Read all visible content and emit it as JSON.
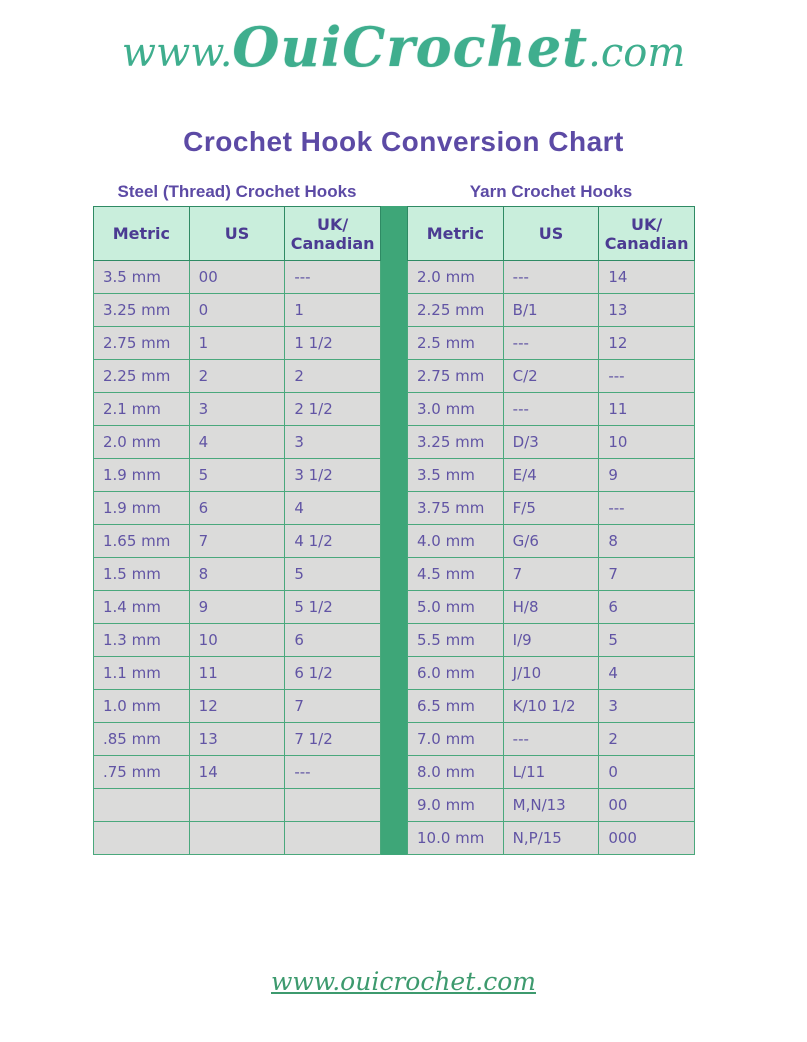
{
  "logo": {
    "prefix": "www.",
    "name": "OuiCrochet",
    "suffix": ".com"
  },
  "page_title": "Crochet Hook Conversion Chart",
  "tables": [
    {
      "title": "Steel (Thread) Crochet Hooks",
      "headers": [
        "Metric",
        "US",
        "UK/\nCanadian"
      ],
      "rows": [
        [
          "3.5 mm",
          "00",
          "---"
        ],
        [
          "3.25 mm",
          "0",
          "1"
        ],
        [
          "2.75 mm",
          "1",
          "1 1/2"
        ],
        [
          "2.25 mm",
          "2",
          "2"
        ],
        [
          "2.1 mm",
          "3",
          "2 1/2"
        ],
        [
          "2.0 mm",
          "4",
          "3"
        ],
        [
          "1.9 mm",
          "5",
          "3 1/2"
        ],
        [
          "1.9 mm",
          "6",
          "4"
        ],
        [
          "1.65 mm",
          "7",
          "4 1/2"
        ],
        [
          "1.5 mm",
          "8",
          "5"
        ],
        [
          "1.4 mm",
          "9",
          "5 1/2"
        ],
        [
          "1.3 mm",
          "10",
          "6"
        ],
        [
          "1.1 mm",
          "11",
          "6 1/2"
        ],
        [
          "1.0 mm",
          "12",
          "7"
        ],
        [
          ".85 mm",
          "13",
          "7 1/2"
        ],
        [
          ".75 mm",
          "14",
          "---"
        ],
        [
          "",
          "",
          ""
        ],
        [
          "",
          "",
          ""
        ]
      ]
    },
    {
      "title": "Yarn Crochet Hooks",
      "headers": [
        "Metric",
        "US",
        "UK/\nCanadian"
      ],
      "rows": [
        [
          "2.0 mm",
          "---",
          "14"
        ],
        [
          "2.25 mm",
          "B/1",
          "13"
        ],
        [
          "2.5 mm",
          "---",
          "12"
        ],
        [
          "2.75 mm",
          "C/2",
          "---"
        ],
        [
          "3.0 mm",
          "---",
          "11"
        ],
        [
          "3.25 mm",
          "D/3",
          "10"
        ],
        [
          "3.5 mm",
          "E/4",
          "9"
        ],
        [
          "3.75 mm",
          "F/5",
          "---"
        ],
        [
          "4.0 mm",
          "G/6",
          "8"
        ],
        [
          "4.5 mm",
          "7",
          "7"
        ],
        [
          "5.0 mm",
          "H/8",
          "6"
        ],
        [
          "5.5 mm",
          "I/9",
          "5"
        ],
        [
          "6.0 mm",
          "J/10",
          "4"
        ],
        [
          "6.5 mm",
          "K/10 1/2",
          "3"
        ],
        [
          "7.0 mm",
          "---",
          "2"
        ],
        [
          "8.0 mm",
          "L/11",
          "0"
        ],
        [
          "9.0 mm",
          "M,N/13",
          "00"
        ],
        [
          "10.0 mm",
          "N,P/15",
          "000"
        ]
      ]
    }
  ],
  "footer": {
    "link_text": "www.ouicrochet.com"
  },
  "colors": {
    "accent-purple": "#5c4aa5",
    "text-purple": "#6154a4",
    "header-purple": "#4b3b92",
    "mint": "#c9eedc",
    "cell-gray": "#dbdbda",
    "green": "#3ea678",
    "border-green": "#4aa87c",
    "logo-teal": "#3fae8e",
    "footer-green": "#3d9a6e"
  }
}
